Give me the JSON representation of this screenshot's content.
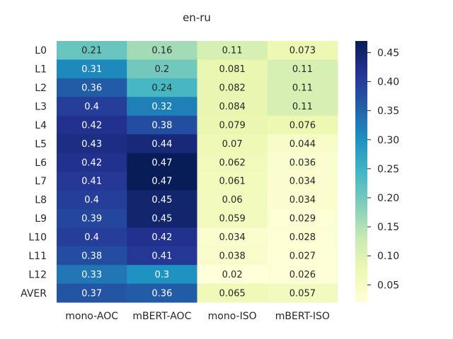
{
  "chart_data": {
    "type": "heatmap",
    "title": "en-ru",
    "columns": [
      "mono-AOC",
      "mBERT-AOC",
      "mono-ISO",
      "mBERT-ISO"
    ],
    "rows": [
      "L0",
      "L1",
      "L2",
      "L3",
      "L4",
      "L5",
      "L6",
      "L7",
      "L8",
      "L9",
      "L10",
      "L11",
      "L12",
      "AVER"
    ],
    "values": [
      [
        0.21,
        0.16,
        0.11,
        0.073
      ],
      [
        0.31,
        0.2,
        0.081,
        0.11
      ],
      [
        0.36,
        0.24,
        0.082,
        0.11
      ],
      [
        0.4,
        0.32,
        0.084,
        0.11
      ],
      [
        0.42,
        0.38,
        0.079,
        0.076
      ],
      [
        0.43,
        0.44,
        0.07,
        0.044
      ],
      [
        0.42,
        0.47,
        0.062,
        0.036
      ],
      [
        0.41,
        0.47,
        0.061,
        0.034
      ],
      [
        0.4,
        0.45,
        0.06,
        0.034
      ],
      [
        0.39,
        0.45,
        0.059,
        0.029
      ],
      [
        0.4,
        0.42,
        0.034,
        0.028
      ],
      [
        0.38,
        0.41,
        0.038,
        0.027
      ],
      [
        0.33,
        0.3,
        0.02,
        0.026
      ],
      [
        0.37,
        0.36,
        0.065,
        0.057
      ]
    ],
    "colormap": "YlGnBu",
    "vmin": 0.02,
    "vmax": 0.47,
    "colorbar_ticks": [
      "0.05",
      "0.10",
      "0.15",
      "0.20",
      "0.25",
      "0.30",
      "0.35",
      "0.40",
      "0.45"
    ],
    "annotations": "shown"
  }
}
